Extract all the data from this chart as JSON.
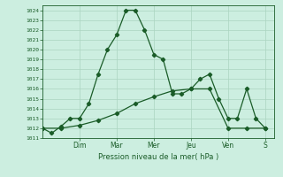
{
  "background_color": "#cceee0",
  "grid_color": "#aad4c0",
  "line_color": "#1a5c28",
  "xlabel": "Pression niveau de la mer( hPa )",
  "ylim": [
    1011,
    1024.5
  ],
  "yticks": [
    1011,
    1012,
    1013,
    1014,
    1015,
    1016,
    1017,
    1018,
    1019,
    1020,
    1021,
    1022,
    1023,
    1024
  ],
  "day_labels": [
    "Dim",
    "Mar",
    "Mer",
    "Jeu",
    "Ven",
    "S"
  ],
  "day_positions": [
    48,
    96,
    144,
    192,
    240,
    288
  ],
  "xlim": [
    0,
    300
  ],
  "series1_x": [
    0,
    12,
    24,
    36,
    48,
    60,
    72,
    84,
    96,
    108,
    120,
    132,
    144,
    156,
    168,
    180,
    192,
    204,
    216,
    228,
    240,
    252,
    264,
    276,
    288
  ],
  "series1_y": [
    1012,
    1011.5,
    1012.2,
    1013.0,
    1013.0,
    1014.5,
    1017.5,
    1020.0,
    1021.5,
    1024.0,
    1024.0,
    1022.0,
    1019.5,
    1019.0,
    1015.5,
    1015.5,
    1016.0,
    1017.0,
    1017.5,
    1015.0,
    1013.0,
    1013.0,
    1016.0,
    1013.0,
    1012.0
  ],
  "series2_x": [
    0,
    24,
    48,
    72,
    96,
    120,
    144,
    168,
    192,
    216,
    240,
    264,
    288
  ],
  "series2_y": [
    1012.0,
    1012.0,
    1012.3,
    1012.8,
    1013.5,
    1014.5,
    1015.2,
    1015.8,
    1016.0,
    1016.0,
    1012.0,
    1012.0,
    1012.0
  ],
  "marker": "D",
  "marker_size": 2.2,
  "linewidth": 0.9
}
